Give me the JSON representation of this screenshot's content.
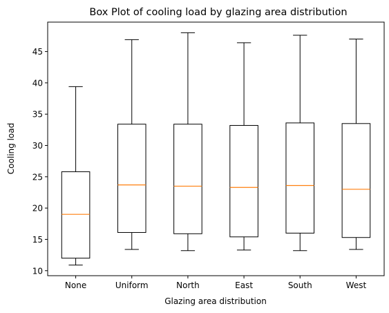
{
  "chart_data": {
    "type": "box",
    "title": "Box Plot of cooling load by glazing area distribution",
    "xlabel": "Glazing area distribution",
    "ylabel": "Cooling load",
    "ylim": [
      9.2,
      49.7
    ],
    "yticks": [
      10,
      15,
      20,
      25,
      30,
      35,
      40,
      45
    ],
    "grid": false,
    "categories": [
      "None",
      "Uniform",
      "North",
      "East",
      "South",
      "West"
    ],
    "boxes": [
      {
        "whisker_low": 10.9,
        "q1": 12.0,
        "median": 19.0,
        "q3": 25.8,
        "whisker_high": 39.4
      },
      {
        "whisker_low": 13.4,
        "q1": 16.1,
        "median": 23.7,
        "q3": 33.4,
        "whisker_high": 46.9
      },
      {
        "whisker_low": 13.2,
        "q1": 15.9,
        "median": 23.5,
        "q3": 33.4,
        "whisker_high": 48.0
      },
      {
        "whisker_low": 13.3,
        "q1": 15.4,
        "median": 23.3,
        "q3": 33.2,
        "whisker_high": 46.4
      },
      {
        "whisker_low": 13.2,
        "q1": 16.0,
        "median": 23.6,
        "q3": 33.6,
        "whisker_high": 47.6
      },
      {
        "whisker_low": 13.4,
        "q1": 15.3,
        "median": 23.0,
        "q3": 33.5,
        "whisker_high": 47.0
      }
    ],
    "colors": {
      "box": "#000000",
      "median": "#ff7f0e",
      "axes": "#000000"
    }
  }
}
